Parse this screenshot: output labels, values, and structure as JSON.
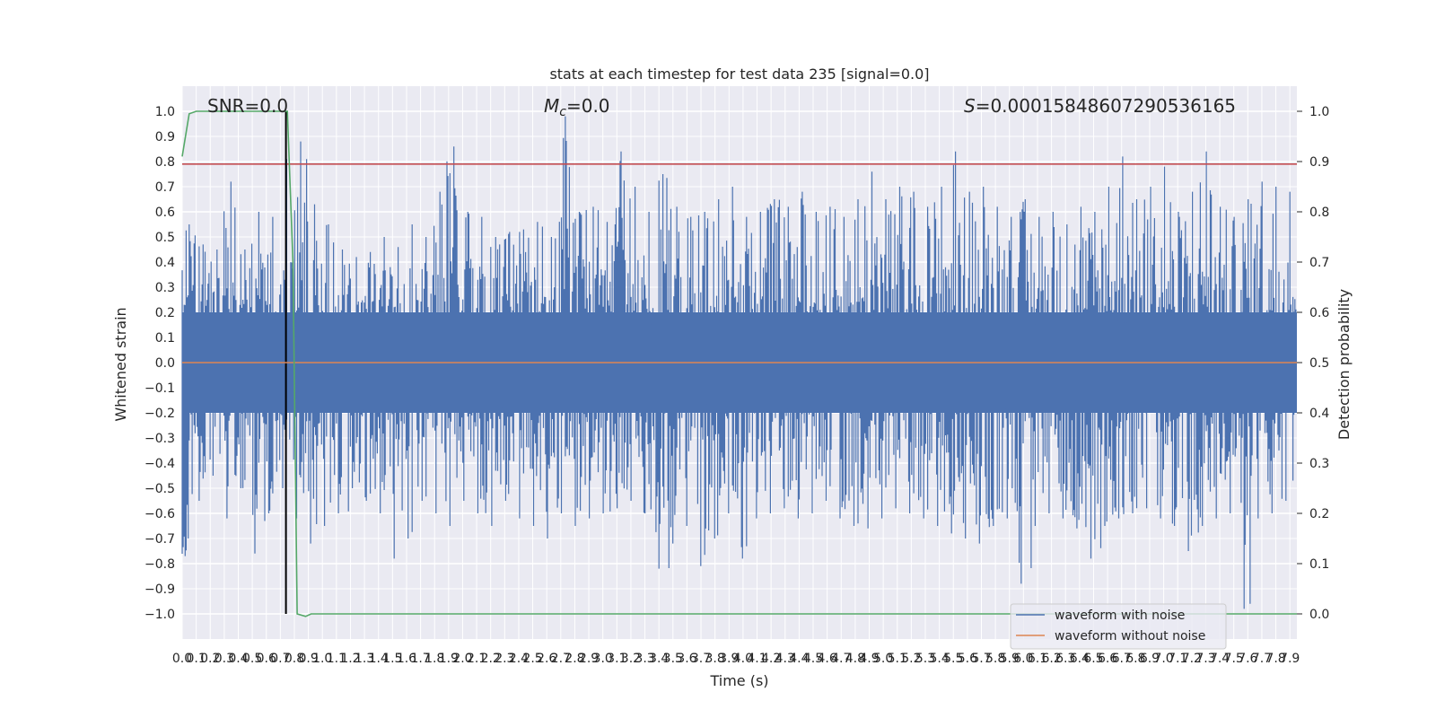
{
  "chart_data": {
    "type": "line",
    "title": "stats at each timestep for test data 235 [signal=0.0]",
    "xlabel": "Time (s)",
    "ylabel": "Whitened strain",
    "y2label": "Detection probability",
    "xlim": [
      0.0,
      7.95
    ],
    "ylim": [
      -1.1,
      1.1
    ],
    "y2lim": [
      -0.05,
      1.05
    ],
    "xticks": [
      "0.0",
      "0.1",
      "0.2",
      "0.3",
      "0.4",
      "0.5",
      "0.6",
      "0.7",
      "0.8",
      "0.9",
      "1.0",
      "1.1",
      "1.2",
      "1.3",
      "1.4",
      "1.5",
      "1.6",
      "1.7",
      "1.8",
      "1.9",
      "2.0",
      "2.1",
      "2.2",
      "2.3",
      "2.4",
      "2.5",
      "2.6",
      "2.7",
      "2.8",
      "2.9",
      "3.0",
      "3.1",
      "3.2",
      "3.3",
      "3.4",
      "3.5",
      "3.6",
      "3.7",
      "3.8",
      "3.9",
      "4.0",
      "4.1",
      "4.2",
      "4.3",
      "4.4",
      "4.5",
      "4.6",
      "4.7",
      "4.8",
      "4.9",
      "5.0",
      "5.1",
      "5.2",
      "5.3",
      "5.4",
      "5.5",
      "5.6",
      "5.7",
      "5.8",
      "5.9",
      "6.0",
      "6.1",
      "6.2",
      "6.3",
      "6.4",
      "6.5",
      "6.6",
      "6.7",
      "6.8",
      "6.9",
      "7.0",
      "7.1",
      "7.2",
      "7.3",
      "7.4",
      "7.5",
      "7.6",
      "7.7",
      "7.8",
      "7.9"
    ],
    "yticks": [
      "1.0",
      "0.9",
      "0.8",
      "0.7",
      "0.6",
      "0.5",
      "0.4",
      "0.3",
      "0.2",
      "0.1",
      "0.0",
      "−0.1",
      "−0.2",
      "−0.3",
      "−0.4",
      "−0.5",
      "−0.6",
      "−0.7",
      "−0.8",
      "−0.9",
      "−1.0"
    ],
    "y2ticks": [
      "1.0",
      "0.9",
      "0.8",
      "0.7",
      "0.6",
      "0.5",
      "0.4",
      "0.3",
      "0.2",
      "0.1",
      "0.0"
    ],
    "annotations": {
      "snr": "SNR=0.0",
      "mc_symbol": "M",
      "mc_sub": "c",
      "mc_value": "=0.0",
      "s_symbol": "S",
      "s_value": "=0.00015848607290536165"
    },
    "legend": {
      "placement": "lower right",
      "entries": [
        "waveform with noise",
        "waveform without noise"
      ]
    },
    "grid": true,
    "series": [
      {
        "name": "waveform with noise",
        "color": "#4c72b0",
        "axis": "left",
        "envelope_upper": [
          0.55,
          0.47,
          0.45,
          0.72,
          0.45,
          0.6,
          0.58,
          0.81,
          0.88,
          0.63,
          0.55,
          0.45,
          0.42,
          0.44,
          0.5,
          0.46,
          0.55,
          0.5,
          0.68,
          0.86,
          0.6,
          0.58,
          0.5,
          0.52,
          0.53,
          0.56,
          0.5,
          0.98,
          0.6,
          0.62,
          0.56,
          0.84,
          0.7,
          0.6,
          0.75,
          0.62,
          0.58,
          0.6,
          0.65,
          0.7,
          0.58,
          0.6,
          0.65,
          0.62,
          0.68,
          0.6,
          0.62,
          0.58,
          0.65,
          0.76,
          0.65,
          0.7,
          0.68,
          0.62,
          0.7,
          0.84,
          0.68,
          0.7,
          0.62,
          0.58,
          0.65,
          0.58,
          0.6,
          0.55,
          0.62,
          0.6,
          0.7,
          0.82,
          0.65,
          0.7,
          0.78,
          0.6,
          0.68,
          0.84,
          0.62,
          0.58,
          0.65,
          0.72,
          0.7,
          0.68
        ],
        "envelope_lower": [
          -0.77,
          -0.55,
          -0.45,
          -0.62,
          -0.5,
          -0.76,
          -0.6,
          -0.5,
          -0.62,
          -0.72,
          -0.65,
          -0.6,
          -0.5,
          -0.55,
          -0.6,
          -0.78,
          -0.7,
          -0.55,
          -0.6,
          -0.65,
          -0.55,
          -0.6,
          -0.65,
          -0.55,
          -0.62,
          -0.65,
          -0.7,
          -0.6,
          -0.65,
          -0.62,
          -0.6,
          -0.58,
          -0.55,
          -0.6,
          -0.82,
          -0.72,
          -0.65,
          -0.81,
          -0.7,
          -0.6,
          -0.78,
          -0.62,
          -0.6,
          -0.58,
          -0.62,
          -0.6,
          -0.55,
          -0.62,
          -0.65,
          -0.66,
          -0.62,
          -0.58,
          -0.6,
          -0.62,
          -0.65,
          -0.68,
          -0.7,
          -0.72,
          -0.65,
          -0.62,
          -0.88,
          -0.65,
          -0.6,
          -0.62,
          -0.66,
          -0.78,
          -0.65,
          -0.62,
          -0.6,
          -0.58,
          -0.62,
          -0.65,
          -0.75,
          -0.65,
          -0.62,
          -0.6,
          -0.98,
          -0.62,
          -0.6,
          -0.55
        ]
      },
      {
        "name": "waveform without noise",
        "color": "#dd8452",
        "axis": "left",
        "x": [
          0.0,
          7.95
        ],
        "y": [
          0.0,
          0.0
        ]
      },
      {
        "color": "#55a868",
        "axis": "right",
        "x": [
          0.0,
          0.05,
          0.1,
          0.15,
          0.5,
          0.75,
          0.79,
          0.82,
          0.88,
          0.92,
          7.95
        ],
        "y": [
          0.91,
          0.995,
          1.0,
          1.0,
          1.0,
          1.0,
          0.7,
          0.0,
          -0.005,
          0.0,
          0.0
        ]
      }
    ],
    "reference_lines": [
      {
        "orientation": "horizontal",
        "axis": "left",
        "value": 0.79,
        "color": "#c44e52"
      },
      {
        "orientation": "vertical",
        "value": 0.74,
        "range": [
          -1.0,
          1.0
        ],
        "color": "#000000"
      }
    ]
  }
}
